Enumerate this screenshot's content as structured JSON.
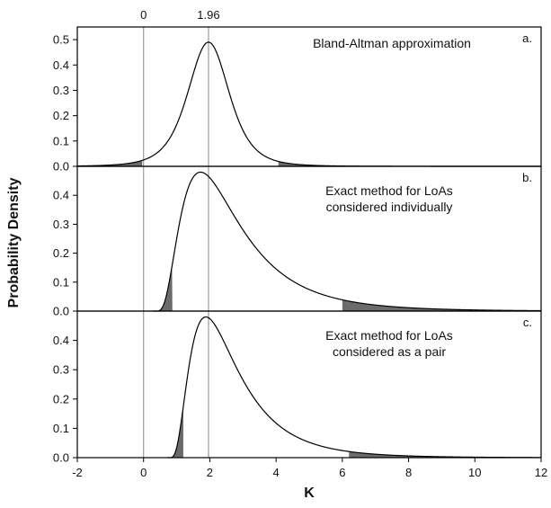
{
  "chart_data": {
    "type": "line",
    "ylabel": "Probability Density",
    "xlabel": "K",
    "xlim": [
      -2,
      12
    ],
    "x_ticks": [
      "-2",
      "0",
      "2",
      "4",
      "6",
      "8",
      "10",
      "12"
    ],
    "reference_lines": [
      {
        "x": 0,
        "label": "0"
      },
      {
        "x": 1.96,
        "label": "1.96"
      }
    ],
    "panels": [
      {
        "letter": "a.",
        "title_lines": [
          "Bland-Altman approximation"
        ],
        "ylim": [
          0,
          0.55
        ],
        "y_ticks": [
          "0.0",
          "0.1",
          "0.2",
          "0.3",
          "0.4",
          "0.5"
        ],
        "peak": {
          "x": 1.96,
          "y": 0.49
        },
        "distribution": "symmetric",
        "shaded_tails": [
          [
            -2,
            -0.04
          ],
          [
            4.07,
            12
          ]
        ],
        "series": [
          {
            "x": [
              -2,
              -1,
              0,
              0.5,
              1,
              1.5,
              1.96,
              2.5,
              3,
              3.5,
              4,
              5,
              6,
              8,
              12
            ],
            "y": [
              0.004,
              0.012,
              0.045,
              0.09,
              0.18,
              0.35,
              0.49,
              0.37,
              0.2,
              0.09,
              0.045,
              0.012,
              0.004,
              0.0005,
              0
            ]
          }
        ]
      },
      {
        "letter": "b.",
        "title_lines": [
          "Exact method for LoAs",
          "considered individually"
        ],
        "ylim": [
          0,
          0.5
        ],
        "y_ticks": [
          "0.0",
          "0.1",
          "0.2",
          "0.3",
          "0.4"
        ],
        "peak": {
          "x": 1.72,
          "y": 0.48
        },
        "distribution": "right-skewed",
        "shaded_tails": [
          [
            0.3,
            0.87
          ],
          [
            6.0,
            12
          ]
        ],
        "series": [
          {
            "x": [
              0.3,
              0.5,
              0.87,
              1.2,
              1.72,
              2.2,
              3,
              4,
              5,
              6,
              8,
              10,
              12
            ],
            "y": [
              0,
              0.02,
              0.1,
              0.28,
              0.48,
              0.42,
              0.28,
              0.13,
              0.055,
              0.02,
              0.006,
              0.002,
              0.001
            ]
          }
        ]
      },
      {
        "letter": "c.",
        "title_lines": [
          "Exact method for LoAs",
          "considered as a pair"
        ],
        "ylim": [
          0,
          0.5
        ],
        "y_ticks": [
          "0.0",
          "0.1",
          "0.2",
          "0.3",
          "0.4"
        ],
        "peak": {
          "x": 1.88,
          "y": 0.48
        },
        "distribution": "right-skewed",
        "shaded_tails": [
          [
            0.72,
            1.2
          ],
          [
            6.2,
            12
          ]
        ],
        "series": [
          {
            "x": [
              0.72,
              1,
              1.2,
              1.5,
              1.88,
              2.4,
              3,
              4,
              5,
              6,
              8,
              10,
              12
            ],
            "y": [
              0,
              0.05,
              0.17,
              0.35,
              0.48,
              0.38,
              0.25,
              0.12,
              0.05,
              0.02,
              0.006,
              0.002,
              0.001
            ]
          }
        ]
      }
    ]
  }
}
